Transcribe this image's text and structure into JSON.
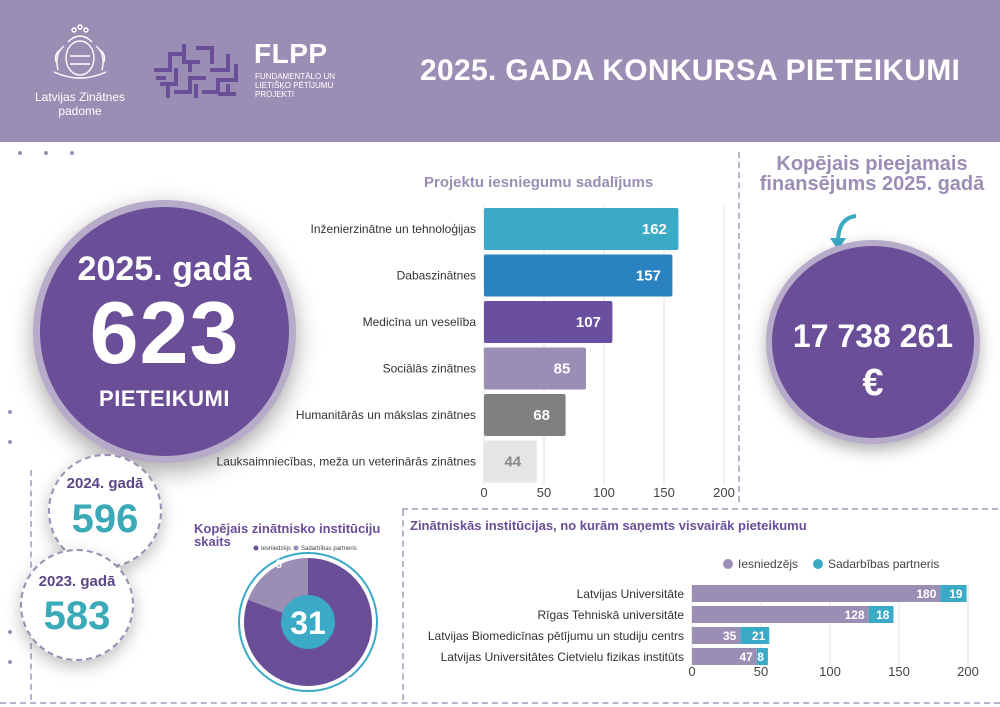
{
  "header": {
    "org_name": "Latvijas Zinātnes padome",
    "flpp_title": "FLPP",
    "flpp_subtitle": "FUNDAMENTĀLO UN LIETIŠĶO PĒTĪJUMU PROJEKTI",
    "title": "2025. GADA KONKURSA PIETEIKUMI",
    "bg_color": "#9b8eb4"
  },
  "summary": {
    "current_label": "2025. gadā",
    "current_value": "623",
    "current_unit": "PIETEIKUMI",
    "previous": [
      {
        "label": "2024. gadā",
        "value": "596"
      },
      {
        "label": "2023. gadā",
        "value": "583"
      }
    ]
  },
  "funding": {
    "title": "Kopējais pieejamais finansējums 2025. gadā",
    "amount": "17 738 261",
    "currency": "€"
  },
  "chart_data": [
    {
      "type": "bar",
      "orientation": "horizontal",
      "title": "Projektu iesniegumu sadalījums",
      "categories": [
        "Inženierzinātne un tehnoloģijas",
        "Dabaszinātnes",
        "Medicīna un veselība",
        "Sociālās zinātnes",
        "Humanitārās un mākslas zinātnes",
        "Lauksaimniecības, meža un veterinārās zinātnes"
      ],
      "values": [
        162,
        157,
        107,
        85,
        68,
        44
      ],
      "colors": [
        "#3aaac6",
        "#2a82c0",
        "#6a4e9f",
        "#9b8eb4",
        "#808080",
        "#e5e5e5"
      ],
      "xlim": [
        0,
        200
      ],
      "xticks": [
        0,
        50,
        100,
        150,
        200
      ],
      "grid": true
    },
    {
      "type": "pie",
      "title": "Kopējais zinātnisko institūciju skaits",
      "center_value": "31",
      "legend": [
        "Iesniedzējs",
        "Sadarbības partneris"
      ],
      "values": [
        25,
        6
      ],
      "colors": [
        "#6a4e97",
        "#9b8eb4"
      ]
    },
    {
      "type": "bar",
      "orientation": "horizontal",
      "stacked": true,
      "title": "Zinātniskās institūcijas, no kurām saņemts visvairāk pieteikumu",
      "categories": [
        "Latvijas Universitāte",
        "Rīgas Tehniskā universitāte",
        "Latvijas Biomedicīnas pētījumu un studiju centrs",
        "Latvijas Universitātes Cietvielu fizikas institūts"
      ],
      "series": [
        {
          "name": "Iesniedzējs",
          "values": [
            180,
            128,
            35,
            47
          ],
          "color": "#9b8eb4"
        },
        {
          "name": "Sadarbības partneris",
          "values": [
            19,
            18,
            21,
            8
          ],
          "color": "#3aaac6"
        }
      ],
      "xlim": [
        0,
        200
      ],
      "xticks": [
        0,
        50,
        100,
        150,
        200
      ],
      "legend": "top"
    }
  ]
}
